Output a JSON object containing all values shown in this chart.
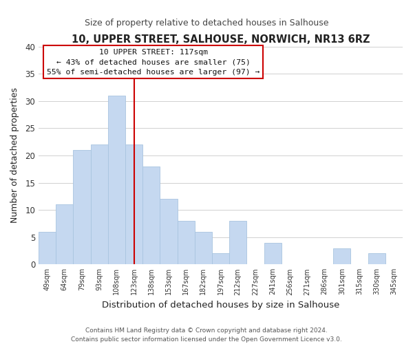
{
  "title": "10, UPPER STREET, SALHOUSE, NORWICH, NR13 6RZ",
  "subtitle": "Size of property relative to detached houses in Salhouse",
  "xlabel": "Distribution of detached houses by size in Salhouse",
  "ylabel": "Number of detached properties",
  "categories": [
    "49sqm",
    "64sqm",
    "79sqm",
    "93sqm",
    "108sqm",
    "123sqm",
    "138sqm",
    "153sqm",
    "167sqm",
    "182sqm",
    "197sqm",
    "212sqm",
    "227sqm",
    "241sqm",
    "256sqm",
    "271sqm",
    "286sqm",
    "301sqm",
    "315sqm",
    "330sqm",
    "345sqm"
  ],
  "values": [
    6,
    11,
    21,
    22,
    31,
    22,
    18,
    12,
    8,
    6,
    2,
    8,
    0,
    4,
    0,
    0,
    0,
    3,
    0,
    2,
    0
  ],
  "bar_color": "#c5d8f0",
  "bar_edge_color": "#a8c4e0",
  "grid_color": "#d0d0d0",
  "vline_index": 5,
  "annotation_text_line1": "10 UPPER STREET: 117sqm",
  "annotation_text_line2": "← 43% of detached houses are smaller (75)",
  "annotation_text_line3": "55% of semi-detached houses are larger (97) →",
  "annotation_box_color": "#ffffff",
  "annotation_box_edge": "#cc0000",
  "vline_color": "#cc0000",
  "ylim": [
    0,
    40
  ],
  "yticks": [
    0,
    5,
    10,
    15,
    20,
    25,
    30,
    35,
    40
  ],
  "footer_line1": "Contains HM Land Registry data © Crown copyright and database right 2024.",
  "footer_line2": "Contains public sector information licensed under the Open Government Licence v3.0."
}
